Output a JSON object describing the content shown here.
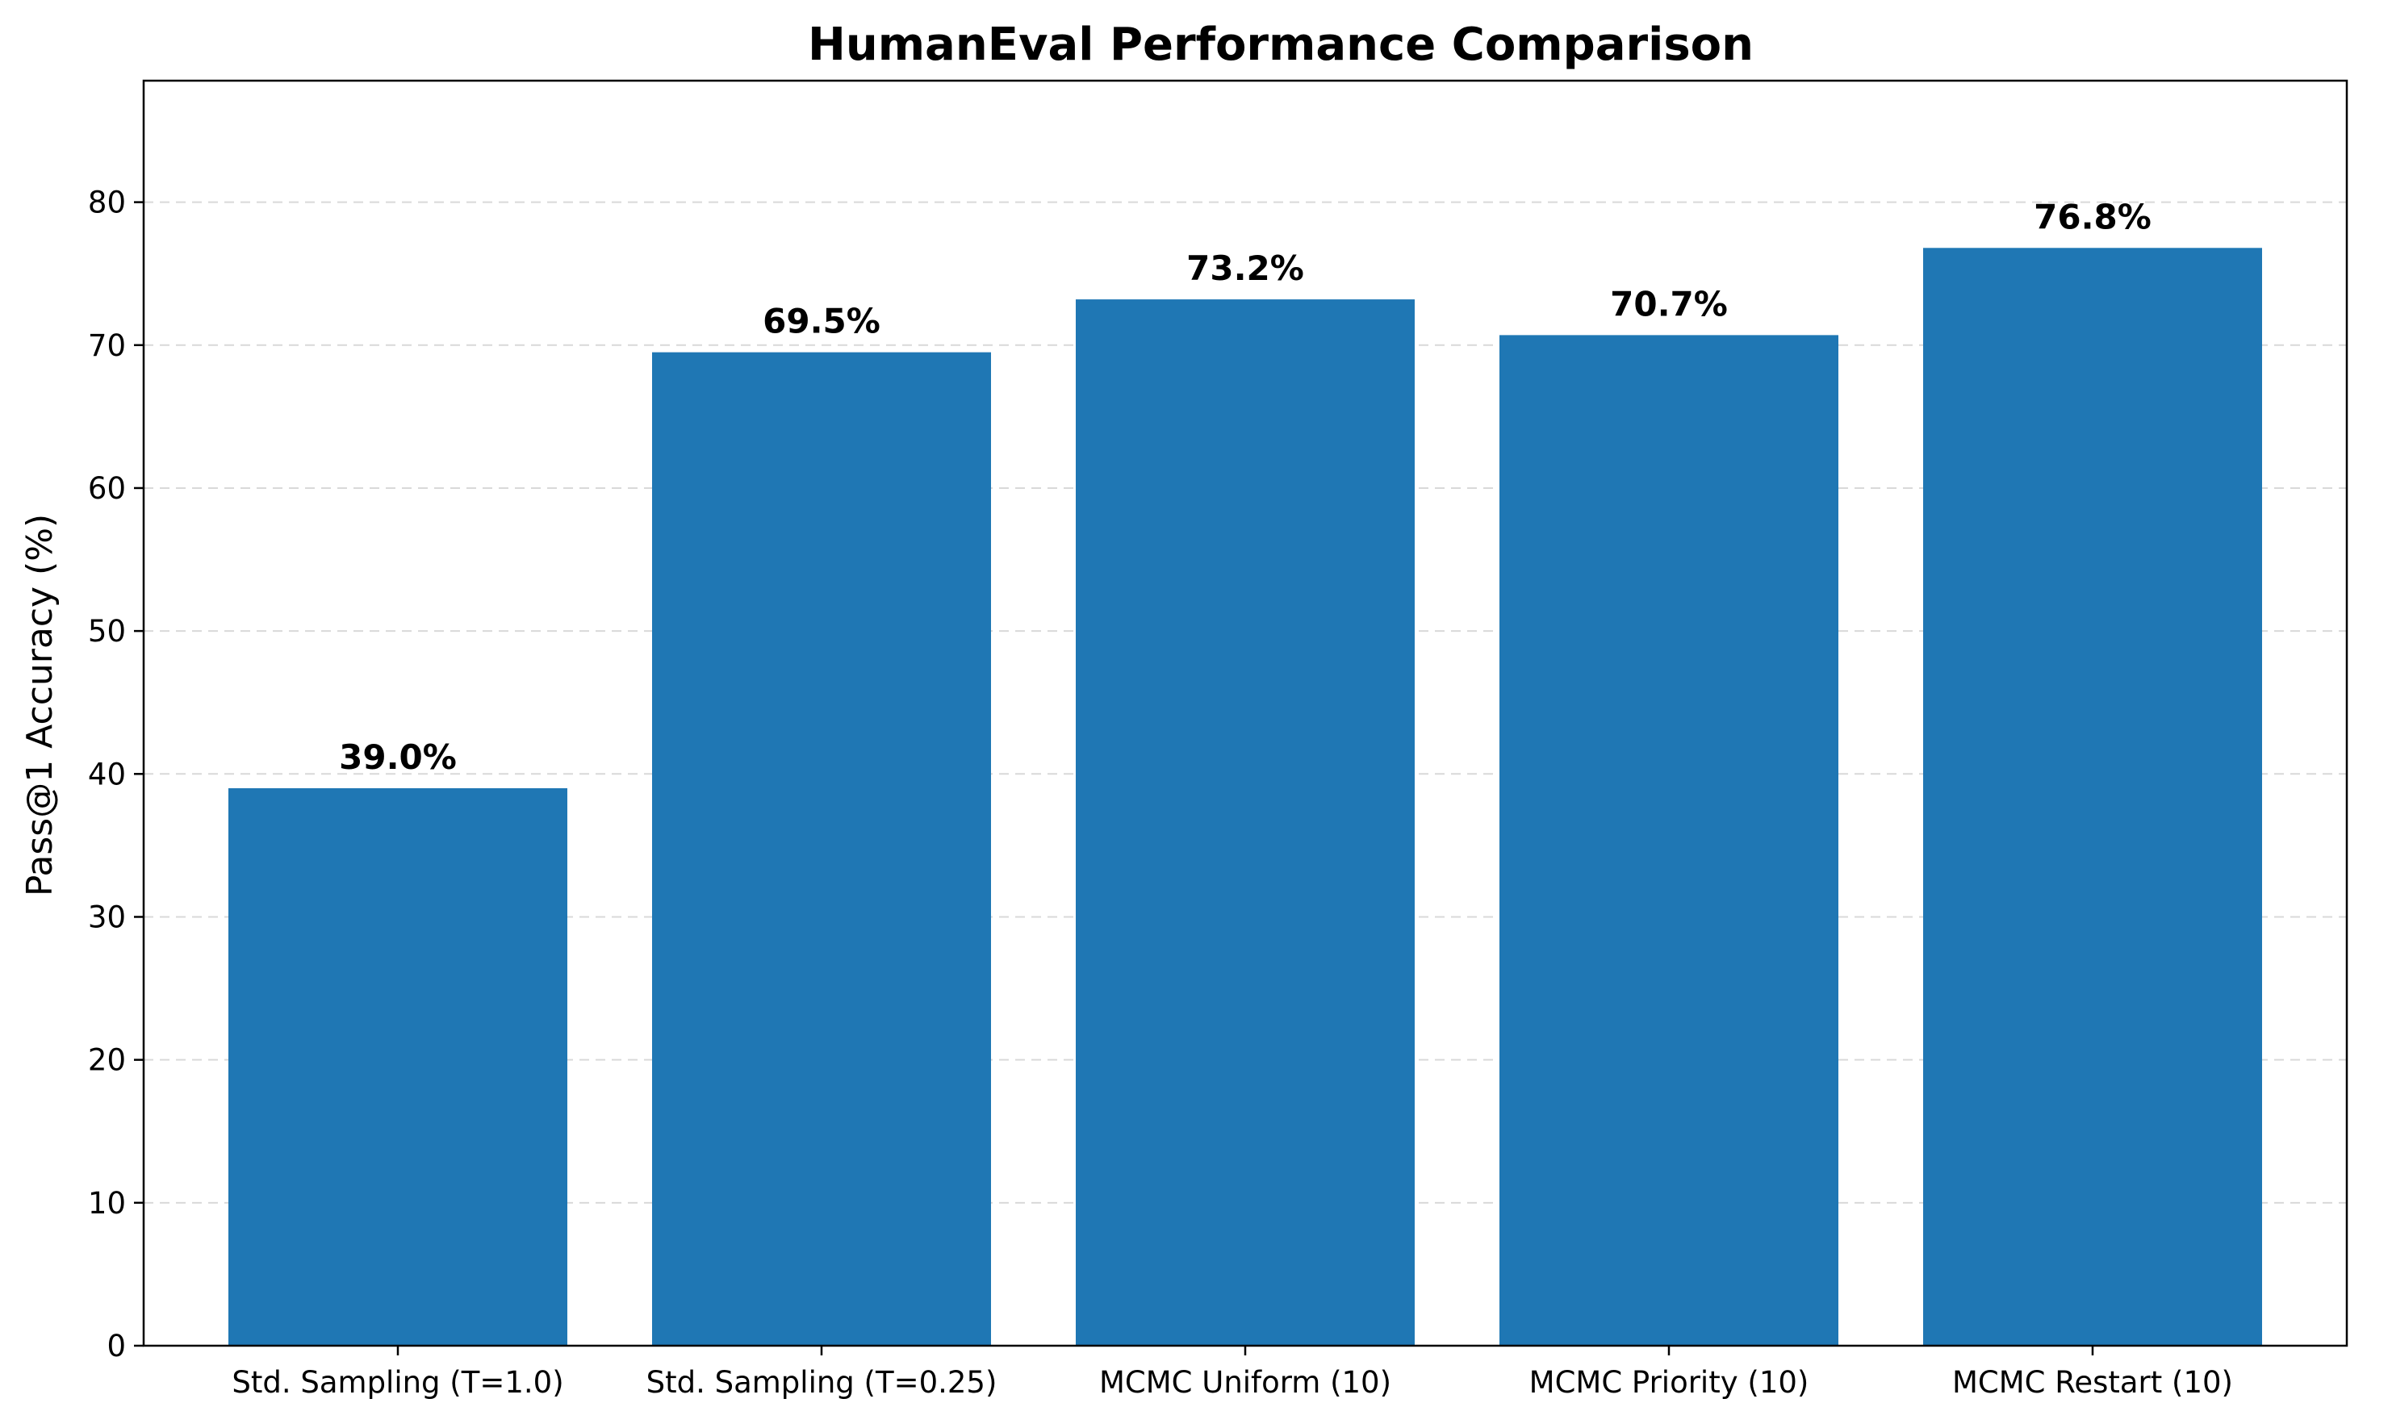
{
  "chart_data": {
    "type": "bar",
    "title": "HumanEval Performance Comparison",
    "xlabel": "",
    "ylabel": "Pass@1 Accuracy (%)",
    "categories": [
      "Std. Sampling (T=1.0)",
      "Std. Sampling (T=0.25)",
      "MCMC Uniform (10)",
      "MCMC Priority (10)",
      "MCMC Restart (10)"
    ],
    "values": [
      39.0,
      69.5,
      73.2,
      70.7,
      76.8
    ],
    "value_labels": [
      "39.0%",
      "69.5%",
      "73.2%",
      "70.7%",
      "76.8%"
    ],
    "ylim": [
      0,
      88.5
    ],
    "yticks": [
      0,
      10,
      20,
      30,
      40,
      50,
      60,
      70,
      80
    ],
    "grid": true,
    "legend": "none",
    "bar_color": "#1f77b4"
  }
}
